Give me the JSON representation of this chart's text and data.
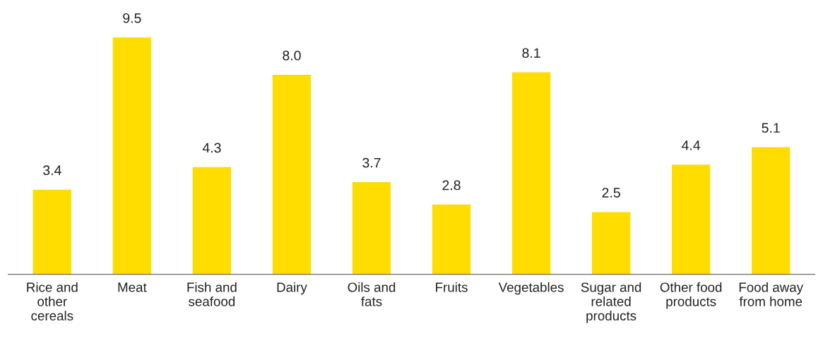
{
  "chart_data": {
    "type": "bar",
    "categories": [
      "Rice and\nother\ncereals",
      "Meat",
      "Fish and\nseafood",
      "Dairy",
      "Oils and\nfats",
      "Fruits",
      "Vegetables",
      "Sugar and\nrelated\nproducts",
      "Other food\nproducts",
      "Food away\nfrom home"
    ],
    "values": [
      3.4,
      9.5,
      4.3,
      8.0,
      3.7,
      2.8,
      8.1,
      2.5,
      4.4,
      5.1
    ],
    "color": "#ffdd00",
    "value_labels": [
      "3.4",
      "9.5",
      "4.3",
      "8.0",
      "3.7",
      "2.8",
      "8.1",
      "2.5",
      "4.4",
      "5.1"
    ],
    "grid": false,
    "legend": false
  }
}
